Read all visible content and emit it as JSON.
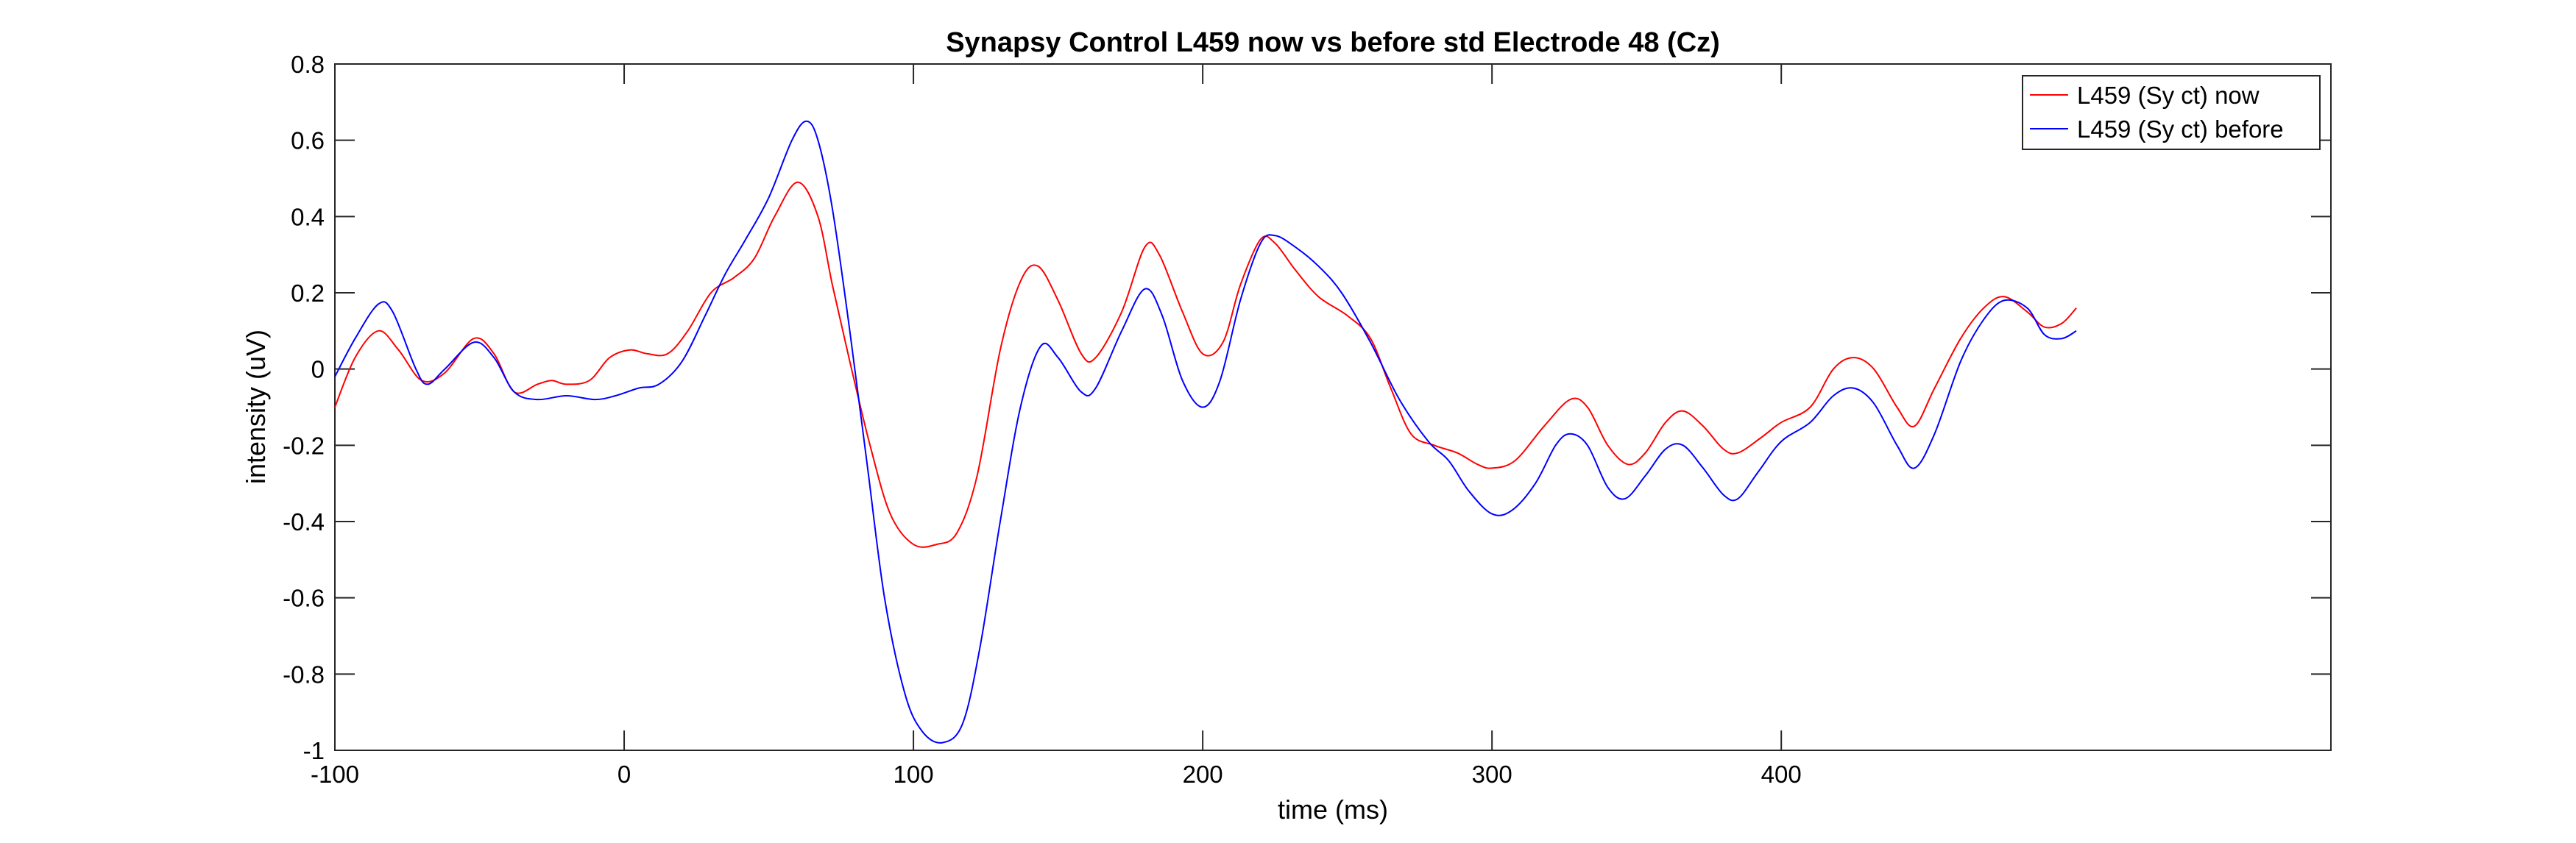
{
  "chart_data": {
    "type": "line",
    "title": "Synapsy Control L459 now vs before std Electrode 48 (Cz)",
    "xlabel": "time (ms)",
    "ylabel": "intensity (uV)",
    "xlim": [
      -100,
      590
    ],
    "ylim": [
      -1,
      0.8
    ],
    "xticks": [
      -100,
      0,
      100,
      200,
      300,
      400
    ],
    "xtick_labels": [
      "-100",
      "0",
      "100",
      "200",
      "300",
      "400"
    ],
    "yticks": [
      -1,
      -0.8,
      -0.6,
      -0.4,
      -0.2,
      0,
      0.2,
      0.4,
      0.6,
      0.8
    ],
    "ytick_labels": [
      "-1",
      "-0.8",
      "-0.6",
      "-0.4",
      "-0.2",
      "0",
      "0.2",
      "0.4",
      "0.6",
      "0.8"
    ],
    "grid": false,
    "legend_position": "top-right",
    "series": [
      {
        "name": "L459 (Sy ct) now",
        "color": "#ff0000",
        "points": [
          [
            -100,
            -0.1
          ],
          [
            -93,
            0.03
          ],
          [
            -85,
            0.1
          ],
          [
            -78,
            0.05
          ],
          [
            -70,
            -0.03
          ],
          [
            -62,
            -0.01
          ],
          [
            -52,
            0.08
          ],
          [
            -45,
            0.04
          ],
          [
            -38,
            -0.06
          ],
          [
            -30,
            -0.04
          ],
          [
            -25,
            -0.03
          ],
          [
            -20,
            -0.04
          ],
          [
            -12,
            -0.03
          ],
          [
            -5,
            0.03
          ],
          [
            2,
            0.05
          ],
          [
            8,
            0.04
          ],
          [
            15,
            0.04
          ],
          [
            22,
            0.1
          ],
          [
            30,
            0.2
          ],
          [
            38,
            0.24
          ],
          [
            45,
            0.29
          ],
          [
            52,
            0.4
          ],
          [
            60,
            0.49
          ],
          [
            67,
            0.4
          ],
          [
            72,
            0.22
          ],
          [
            78,
            0.02
          ],
          [
            85,
            -0.2
          ],
          [
            92,
            -0.38
          ],
          [
            100,
            -0.46
          ],
          [
            108,
            -0.46
          ],
          [
            115,
            -0.43
          ],
          [
            122,
            -0.28
          ],
          [
            130,
            0.05
          ],
          [
            137,
            0.23
          ],
          [
            143,
            0.27
          ],
          [
            150,
            0.18
          ],
          [
            158,
            0.04
          ],
          [
            163,
            0.03
          ],
          [
            172,
            0.15
          ],
          [
            180,
            0.32
          ],
          [
            185,
            0.3
          ],
          [
            193,
            0.15
          ],
          [
            200,
            0.04
          ],
          [
            207,
            0.07
          ],
          [
            213,
            0.22
          ],
          [
            220,
            0.34
          ],
          [
            225,
            0.33
          ],
          [
            232,
            0.26
          ],
          [
            240,
            0.19
          ],
          [
            250,
            0.14
          ],
          [
            258,
            0.08
          ],
          [
            265,
            -0.05
          ],
          [
            272,
            -0.17
          ],
          [
            280,
            -0.2
          ],
          [
            288,
            -0.22
          ],
          [
            295,
            -0.25
          ],
          [
            300,
            -0.26
          ],
          [
            308,
            -0.24
          ],
          [
            318,
            -0.15
          ],
          [
            327,
            -0.08
          ],
          [
            333,
            -0.1
          ],
          [
            340,
            -0.2
          ],
          [
            347,
            -0.25
          ],
          [
            353,
            -0.22
          ],
          [
            360,
            -0.14
          ],
          [
            366,
            -0.11
          ],
          [
            373,
            -0.15
          ],
          [
            380,
            -0.21
          ],
          [
            385,
            -0.22
          ],
          [
            393,
            -0.18
          ],
          [
            400,
            -0.14
          ],
          [
            410,
            -0.1
          ],
          [
            418,
            0.0
          ],
          [
            425,
            0.03
          ],
          [
            432,
            0.0
          ],
          [
            440,
            -0.1
          ],
          [
            446,
            -0.15
          ],
          [
            453,
            -0.05
          ],
          [
            462,
            0.08
          ],
          [
            470,
            0.16
          ],
          [
            477,
            0.19
          ],
          [
            485,
            0.15
          ],
          [
            491,
            0.11
          ],
          [
            497,
            0.12
          ],
          [
            502,
            0.16
          ]
        ]
      },
      {
        "name": "L459 (Sy ct) before",
        "color": "#0000ff",
        "points": [
          [
            -100,
            -0.02
          ],
          [
            -93,
            0.08
          ],
          [
            -85,
            0.17
          ],
          [
            -80,
            0.15
          ],
          [
            -72,
            0.0
          ],
          [
            -68,
            -0.04
          ],
          [
            -62,
            0.0
          ],
          [
            -52,
            0.07
          ],
          [
            -45,
            0.03
          ],
          [
            -38,
            -0.06
          ],
          [
            -30,
            -0.08
          ],
          [
            -20,
            -0.07
          ],
          [
            -10,
            -0.08
          ],
          [
            -3,
            -0.07
          ],
          [
            5,
            -0.05
          ],
          [
            12,
            -0.04
          ],
          [
            20,
            0.02
          ],
          [
            28,
            0.14
          ],
          [
            35,
            0.25
          ],
          [
            42,
            0.34
          ],
          [
            50,
            0.45
          ],
          [
            58,
            0.6
          ],
          [
            63,
            0.65
          ],
          [
            67,
            0.6
          ],
          [
            72,
            0.42
          ],
          [
            78,
            0.1
          ],
          [
            84,
            -0.25
          ],
          [
            90,
            -0.6
          ],
          [
            97,
            -0.85
          ],
          [
            103,
            -0.95
          ],
          [
            110,
            -0.98
          ],
          [
            117,
            -0.93
          ],
          [
            123,
            -0.73
          ],
          [
            130,
            -0.4
          ],
          [
            137,
            -0.1
          ],
          [
            144,
            0.06
          ],
          [
            150,
            0.03
          ],
          [
            158,
            -0.06
          ],
          [
            163,
            -0.05
          ],
          [
            172,
            0.1
          ],
          [
            180,
            0.21
          ],
          [
            186,
            0.14
          ],
          [
            193,
            -0.03
          ],
          [
            200,
            -0.1
          ],
          [
            206,
            -0.03
          ],
          [
            213,
            0.18
          ],
          [
            220,
            0.33
          ],
          [
            225,
            0.35
          ],
          [
            232,
            0.32
          ],
          [
            240,
            0.27
          ],
          [
            248,
            0.2
          ],
          [
            258,
            0.07
          ],
          [
            268,
            -0.08
          ],
          [
            278,
            -0.19
          ],
          [
            285,
            -0.24
          ],
          [
            292,
            -0.32
          ],
          [
            300,
            -0.38
          ],
          [
            307,
            -0.37
          ],
          [
            315,
            -0.3
          ],
          [
            322,
            -0.2
          ],
          [
            327,
            -0.17
          ],
          [
            333,
            -0.2
          ],
          [
            340,
            -0.31
          ],
          [
            346,
            -0.34
          ],
          [
            353,
            -0.28
          ],
          [
            360,
            -0.21
          ],
          [
            366,
            -0.2
          ],
          [
            373,
            -0.26
          ],
          [
            380,
            -0.33
          ],
          [
            385,
            -0.34
          ],
          [
            392,
            -0.27
          ],
          [
            400,
            -0.19
          ],
          [
            410,
            -0.14
          ],
          [
            418,
            -0.07
          ],
          [
            425,
            -0.05
          ],
          [
            432,
            -0.09
          ],
          [
            440,
            -0.2
          ],
          [
            446,
            -0.26
          ],
          [
            453,
            -0.17
          ],
          [
            462,
            0.02
          ],
          [
            470,
            0.13
          ],
          [
            477,
            0.18
          ],
          [
            485,
            0.16
          ],
          [
            491,
            0.09
          ],
          [
            497,
            0.08
          ],
          [
            502,
            0.1
          ]
        ]
      }
    ]
  }
}
